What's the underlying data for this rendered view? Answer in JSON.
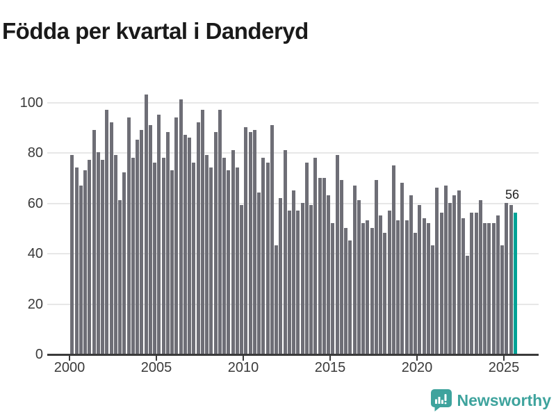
{
  "title": "Födda per kvartal i Danderyd",
  "chart_data": {
    "type": "bar",
    "title": "Födda per kvartal i Danderyd",
    "x_unit": "quarter",
    "frequency": "quarterly",
    "x_start": "2000-Q1",
    "x_end": "2025-Q3",
    "values": [
      79,
      74,
      67,
      73,
      77,
      89,
      80,
      77,
      97,
      92,
      79,
      61,
      72,
      94,
      78,
      85,
      89,
      103,
      91,
      76,
      95,
      78,
      88,
      73,
      94,
      101,
      87,
      86,
      76,
      92,
      97,
      79,
      74,
      88,
      97,
      78,
      73,
      81,
      74,
      59,
      90,
      88,
      89,
      64,
      78,
      76,
      91,
      43,
      62,
      81,
      57,
      65,
      57,
      60,
      76,
      59,
      78,
      70,
      70,
      63,
      52,
      79,
      69,
      50,
      45,
      67,
      61,
      52,
      53,
      50,
      69,
      55,
      48,
      57,
      75,
      53,
      68,
      53,
      63,
      48,
      59,
      54,
      52,
      43,
      66,
      56,
      67,
      60,
      63,
      65,
      54,
      39,
      56,
      56,
      61,
      52,
      52,
      52,
      55,
      43,
      60,
      59,
      56
    ],
    "highlight_last": true,
    "last_value_label": "56",
    "yticks": [
      0,
      20,
      40,
      60,
      80,
      100
    ],
    "ylim": [
      0,
      105
    ],
    "xticks": [
      2000,
      2005,
      2010,
      2015,
      2020,
      2025
    ],
    "grid": true,
    "legend": "none",
    "bar_color": "#6e6e76",
    "highlight_color": "#00a296"
  },
  "colors": {
    "background": "#ffffff",
    "title_text": "#1a1a1a",
    "axis_text": "#3a3a3a",
    "axis_line": "#3a3a3a",
    "gridline": "#e7e7e7",
    "bar_gray": "#6e6e76",
    "bar_teal": "#00a296",
    "brand_teal": "#3ea39d"
  },
  "footer": {
    "brand": "Newsworthy",
    "logo_icon": "bar-chart-speech-bubble-icon"
  }
}
